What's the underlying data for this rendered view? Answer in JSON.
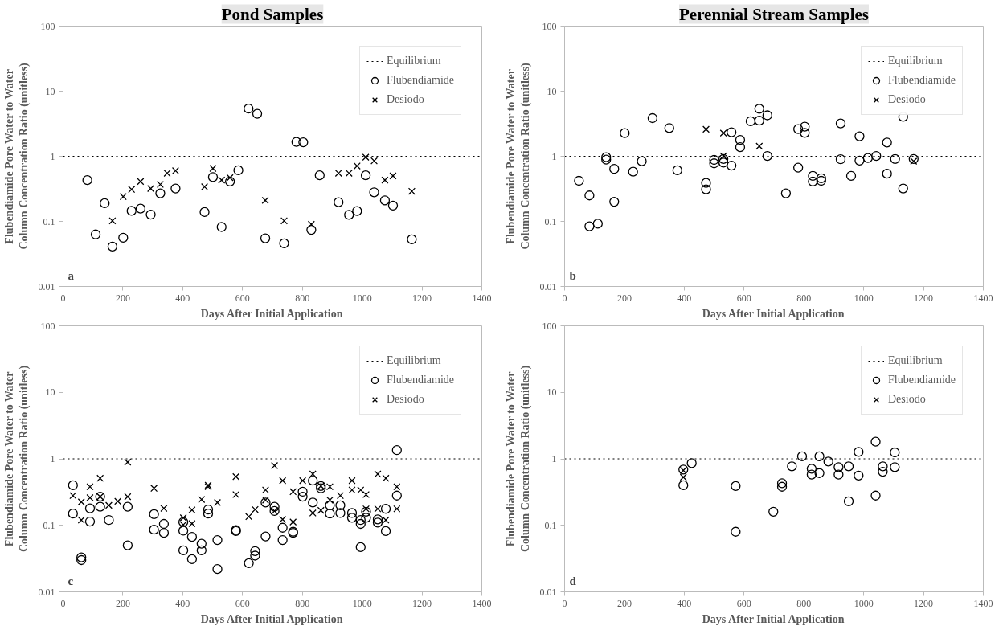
{
  "chart_data": [
    {
      "type": "scatter",
      "title": "Pond Samples",
      "xlabel": "Days After Initial Application",
      "ylabel": "Flubendiamide Pore Water to Water\nColumn Concentration Ratio (unitless)",
      "annotations": [
        "a"
      ],
      "log": "y",
      "xlim": [
        0,
        1400
      ],
      "xticks": [
        0,
        200,
        400,
        600,
        800,
        1000,
        1200,
        1400
      ],
      "ylim": [
        0.01,
        100
      ],
      "yticks": [
        0.01,
        0.1,
        1,
        10,
        100
      ],
      "grid": false,
      "legend": "top right",
      "ref_lines": [
        {
          "axis": "y",
          "value": 1,
          "label": "Equilibrium",
          "color": "#000000",
          "line_style": "dotted"
        }
      ],
      "series": [
        {
          "name": "Flubendiamide",
          "color": "#000000",
          "marker": "circle",
          "x": [
            81,
            109,
            139,
            165,
            201,
            229,
            259,
            293,
            325,
            376,
            473,
            501,
            530,
            558,
            586,
            620,
            649,
            676,
            739,
            780,
            803,
            830,
            858,
            921,
            956,
            983,
            1012,
            1040,
            1076,
            1103,
            1166
          ],
          "values": [
            0.43,
            0.063,
            0.19,
            0.041,
            0.056,
            0.145,
            0.157,
            0.127,
            0.27,
            0.32,
            0.139,
            0.48,
            0.082,
            0.41,
            0.61,
            5.4,
            4.5,
            0.055,
            0.046,
            1.66,
            1.64,
            0.074,
            0.51,
            0.197,
            0.126,
            0.144,
            0.51,
            0.28,
            0.21,
            0.175,
            0.053
          ]
        },
        {
          "name": "Desiodo",
          "color": "#000000",
          "marker": "cross",
          "x": [
            165,
            201,
            229,
            259,
            293,
            325,
            348,
            376,
            473,
            501,
            530,
            558,
            676,
            739,
            830,
            921,
            956,
            983,
            1012,
            1040,
            1076,
            1103,
            1166
          ],
          "values": [
            0.102,
            0.24,
            0.31,
            0.41,
            0.32,
            0.37,
            0.55,
            0.6,
            0.34,
            0.65,
            0.43,
            0.47,
            0.21,
            0.102,
            0.09,
            0.55,
            0.55,
            0.71,
            0.97,
            0.85,
            0.43,
            0.5,
            0.29
          ]
        }
      ]
    },
    {
      "type": "scatter",
      "title": "Perennial Stream Samples",
      "xlabel": "Days After Initial Application",
      "ylabel": "Flubendiamide Pore Water to Water\nColumn Concentration Ratio (unitless)",
      "annotations": [
        "b"
      ],
      "log": "y",
      "xlim": [
        0,
        1400
      ],
      "xticks": [
        0,
        200,
        400,
        600,
        800,
        1000,
        1200,
        1400
      ],
      "ylim": [
        0.01,
        100
      ],
      "yticks": [
        0.01,
        0.1,
        1,
        10,
        100
      ],
      "grid": false,
      "legend": "top right",
      "ref_lines": [
        {
          "axis": "y",
          "value": 1,
          "label": "Equilibrium",
          "color": "#000000",
          "line_style": "dotted"
        }
      ],
      "series": [
        {
          "name": "Flubendiamide",
          "color": "#000000",
          "marker": "circle",
          "x": [
            48,
            83,
            83,
            111,
            139,
            139,
            166,
            166,
            201,
            229,
            258,
            294,
            350,
            377,
            473,
            473,
            500,
            500,
            531,
            531,
            558,
            558,
            587,
            587,
            622,
            651,
            651,
            678,
            678,
            740,
            781,
            781,
            803,
            803,
            830,
            830,
            858,
            858,
            923,
            923,
            958,
            986,
            986,
            1014,
            1042,
            1078,
            1078,
            1105,
            1132,
            1132,
            1167
          ],
          "values": [
            0.42,
            0.25,
            0.084,
            0.092,
            0.97,
            0.89,
            0.64,
            0.2,
            2.27,
            0.58,
            0.84,
            3.86,
            2.71,
            0.61,
            0.39,
            0.31,
            0.88,
            0.78,
            0.91,
            0.8,
            2.34,
            0.72,
            1.78,
            1.38,
            3.45,
            5.38,
            3.53,
            4.26,
            1.01,
            0.27,
            2.62,
            0.67,
            2.86,
            2.29,
            0.5,
            0.41,
            0.46,
            0.42,
            3.2,
            0.9,
            0.5,
            2.03,
            0.86,
            0.94,
            1.01,
            1.63,
            0.54,
            0.91,
            4.04,
            0.32,
            0.91
          ]
        },
        {
          "name": "Desiodo",
          "color": "#000000",
          "marker": "cross",
          "x": [
            473,
            531,
            531,
            651,
            1167
          ],
          "values": [
            2.6,
            2.27,
            1.01,
            1.43,
            0.84
          ]
        }
      ]
    },
    {
      "type": "scatter",
      "xlabel": "Days After Initial Application",
      "ylabel": "Flubendiamide Pore Water to Water\nColumn Concentration Ratio (unitless)",
      "annotations": [
        "c"
      ],
      "log": "y",
      "xlim": [
        0,
        1400
      ],
      "xticks": [
        0,
        200,
        400,
        600,
        800,
        1000,
        1200,
        1400
      ],
      "ylim": [
        0.01,
        100
      ],
      "yticks": [
        0.01,
        0.1,
        1,
        10,
        100
      ],
      "grid": false,
      "legend": "top right",
      "ref_lines": [
        {
          "axis": "y",
          "value": 1,
          "label": "Equilibrium",
          "color": "#000000",
          "line_style": "dotted"
        }
      ],
      "series": [
        {
          "name": "Flubendiamide",
          "color": "#000000",
          "marker": "circle",
          "x": [
            33,
            33,
            61,
            61,
            90,
            90,
            124,
            124,
            153,
            216,
            216,
            304,
            304,
            337,
            337,
            402,
            402,
            402,
            431,
            431,
            463,
            463,
            485,
            485,
            516,
            516,
            578,
            578,
            621,
            642,
            642,
            677,
            677,
            707,
            707,
            734,
            734,
            769,
            769,
            801,
            801,
            835,
            835,
            862,
            862,
            892,
            892,
            927,
            927,
            966,
            966,
            995,
            995,
            995,
            1013,
            1013,
            1052,
            1052,
            1079,
            1079,
            1116,
            1116
          ],
          "values": [
            0.4,
            0.15,
            0.033,
            0.03,
            0.18,
            0.114,
            0.27,
            0.19,
            0.12,
            0.19,
            0.05,
            0.147,
            0.086,
            0.105,
            0.077,
            0.112,
            0.083,
            0.042,
            0.067,
            0.031,
            0.053,
            0.042,
            0.173,
            0.15,
            0.06,
            0.022,
            0.085,
            0.082,
            0.027,
            0.041,
            0.035,
            0.22,
            0.068,
            0.19,
            0.164,
            0.092,
            0.06,
            0.08,
            0.077,
            0.32,
            0.27,
            0.47,
            0.22,
            0.39,
            0.36,
            0.2,
            0.15,
            0.2,
            0.153,
            0.153,
            0.13,
            0.12,
            0.105,
            0.047,
            0.16,
            0.13,
            0.123,
            0.11,
            0.177,
            0.082,
            1.35,
            0.28
          ]
        },
        {
          "name": "Desiodo",
          "color": "#000000",
          "marker": "cross",
          "x": [
            33,
            61,
            61,
            90,
            90,
            124,
            124,
            153,
            183,
            216,
            216,
            304,
            337,
            402,
            402,
            431,
            431,
            463,
            485,
            485,
            516,
            578,
            578,
            621,
            642,
            677,
            677,
            707,
            707,
            734,
            734,
            769,
            769,
            801,
            835,
            835,
            862,
            862,
            892,
            892,
            927,
            966,
            966,
            995,
            1013,
            1013,
            1052,
            1052,
            1079,
            1079,
            1116,
            1116
          ],
          "values": [
            0.28,
            0.225,
            0.12,
            0.38,
            0.26,
            0.51,
            0.27,
            0.2,
            0.23,
            0.89,
            0.27,
            0.36,
            0.18,
            0.13,
            0.102,
            0.17,
            0.106,
            0.245,
            0.4,
            0.38,
            0.22,
            0.54,
            0.29,
            0.135,
            0.173,
            0.34,
            0.24,
            0.79,
            0.164,
            0.47,
            0.123,
            0.32,
            0.112,
            0.47,
            0.59,
            0.153,
            0.39,
            0.168,
            0.38,
            0.24,
            0.28,
            0.47,
            0.34,
            0.34,
            0.29,
            0.177,
            0.59,
            0.177,
            0.51,
            0.12,
            0.38,
            0.177
          ]
        }
      ]
    },
    {
      "type": "scatter",
      "xlabel": "Days After Initial Application",
      "ylabel": "Flubendiamide Pore Water to Water\nColumn Concentration Ratio (unitless)",
      "annotations": [
        "d"
      ],
      "log": "y",
      "xlim": [
        0,
        1400
      ],
      "xticks": [
        0,
        200,
        400,
        600,
        800,
        1000,
        1200,
        1400
      ],
      "ylim": [
        0.01,
        100
      ],
      "yticks": [
        0.01,
        0.1,
        1,
        10,
        100
      ],
      "grid": false,
      "legend": "top right",
      "ref_lines": [
        {
          "axis": "y",
          "value": 1,
          "label": "Equilibrium",
          "color": "#000000",
          "line_style": "dotted"
        }
      ],
      "series": [
        {
          "name": "Flubendiamide",
          "color": "#000000",
          "marker": "circle",
          "x": [
            397,
            397,
            425,
            572,
            572,
            698,
            727,
            727,
            760,
            794,
            826,
            826,
            852,
            852,
            882,
            916,
            916,
            950,
            950,
            983,
            983,
            1040,
            1040,
            1064,
            1064,
            1104,
            1104
          ],
          "values": [
            0.69,
            0.4,
            0.86,
            0.39,
            0.08,
            0.16,
            0.43,
            0.38,
            0.77,
            1.09,
            0.71,
            0.58,
            1.09,
            0.61,
            0.91,
            0.75,
            0.58,
            0.77,
            0.23,
            1.27,
            0.56,
            1.81,
            0.28,
            0.77,
            0.64,
            1.25,
            0.75
          ]
        },
        {
          "name": "Desiodo",
          "color": "#000000",
          "marker": "cross",
          "x": [
            397,
            397
          ],
          "values": [
            0.67,
            0.53
          ]
        }
      ]
    }
  ]
}
